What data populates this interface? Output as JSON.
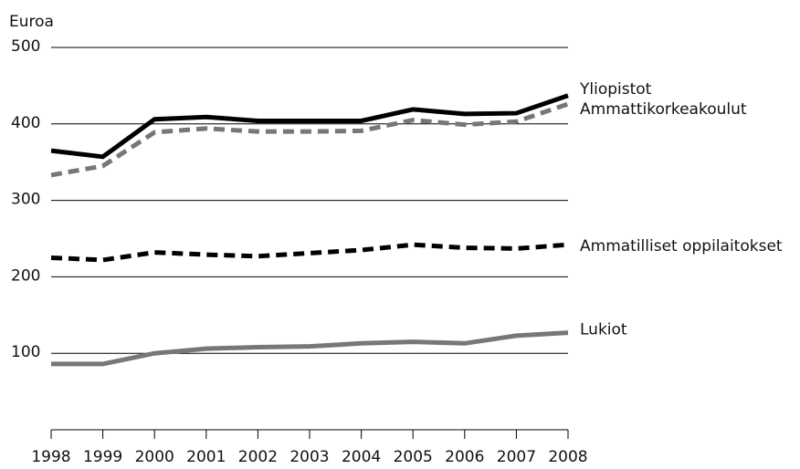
{
  "chart_data": {
    "type": "line",
    "y_label": "Euroa",
    "x": [
      1998,
      1999,
      2000,
      2001,
      2002,
      2003,
      2004,
      2005,
      2006,
      2007,
      2008
    ],
    "xlim": [
      1998,
      2008
    ],
    "xticks": [
      1998,
      1999,
      2000,
      2001,
      2002,
      2003,
      2004,
      2005,
      2006,
      2007,
      2008
    ],
    "ylim": [
      0,
      500
    ],
    "yticks": [
      100,
      200,
      300,
      400,
      500
    ],
    "grid": true,
    "series": [
      {
        "name": "Yliopistot",
        "color": "#000000",
        "dashed": false,
        "values": [
          365,
          357,
          406,
          409,
          404,
          404,
          404,
          419,
          413,
          414,
          437
        ]
      },
      {
        "name": "Ammattikorkeakoulut",
        "color": "#777777",
        "dashed": true,
        "values": [
          333,
          345,
          389,
          394,
          390,
          390,
          391,
          405,
          399,
          403,
          426
        ]
      },
      {
        "name": "Ammatilliset oppilaitokset",
        "color": "#000000",
        "dashed": true,
        "values": [
          225,
          222,
          232,
          229,
          227,
          231,
          235,
          242,
          238,
          237,
          242
        ]
      },
      {
        "name": "Lukiot",
        "color": "#777777",
        "dashed": false,
        "values": [
          86,
          86,
          100,
          106,
          108,
          109,
          113,
          115,
          113,
          123,
          127
        ]
      }
    ]
  }
}
